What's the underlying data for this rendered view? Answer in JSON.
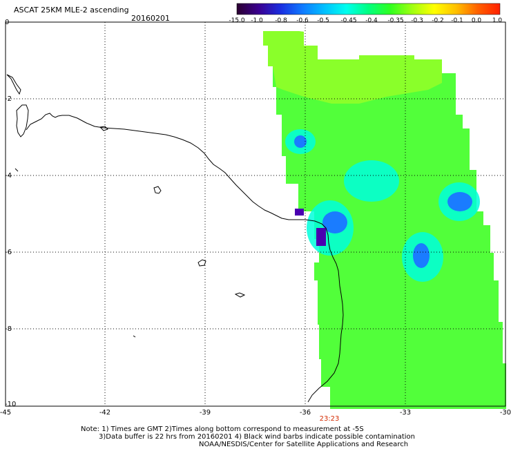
{
  "header": {
    "title": "ASCAT 25KM MLE-2 ascending",
    "date": "20160201"
  },
  "colorbar": {
    "labels": [
      "-15.0",
      "-1.0",
      "-0.8",
      "-0.6",
      "-0.5",
      "-0.45",
      "-0.4",
      "-0.35",
      "-0.3",
      "-0.2",
      "-0.1",
      "0.0",
      "1.0"
    ],
    "colors": [
      "#2b0030",
      "#3a0090",
      "#1a2ee0",
      "#0f7aff",
      "#00c0ff",
      "#00ffee",
      "#00ff80",
      "#30ff20",
      "#a0ff10",
      "#ffff00",
      "#ffc000",
      "#ff6000",
      "#ff2000"
    ]
  },
  "map": {
    "x_ticks": [
      "-45",
      "-42",
      "-39",
      "-36",
      "-33",
      "-30"
    ],
    "y_ticks": [
      "0",
      "-2",
      "-4",
      "-6",
      "-8",
      "-10"
    ],
    "time_label": "23:23",
    "swath_colors": {
      "base": "#52ff3a",
      "light": "#8aff2a",
      "cyan": "#00ffdc",
      "blue": "#1a7cff",
      "violet": "#4a00b0"
    }
  },
  "footer": {
    "line1": "Note: 1) Times are GMT 2)Times along bottom correspond to measurement at -5S",
    "line2": "3)Data buffer is 22 hrs from 20160201 4) Black wind barbs indicate possible contamination",
    "line3": "NOAA/NESDIS/Center for Satellite Applications and Research"
  }
}
